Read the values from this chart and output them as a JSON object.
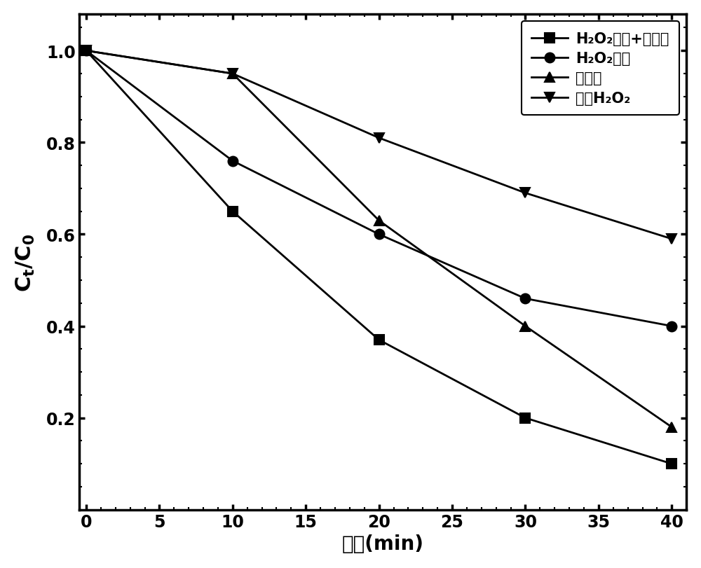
{
  "x": [
    0,
    10,
    20,
    30,
    40
  ],
  "series": [
    {
      "label": "H₂O₂活化+光偒化",
      "y": [
        1.0,
        0.65,
        0.37,
        0.2,
        0.1
      ],
      "marker": "s",
      "markersize": 10
    },
    {
      "label": "H₂O₂活化",
      "y": [
        1.0,
        0.76,
        0.6,
        0.46,
        0.4
      ],
      "marker": "o",
      "markersize": 10
    },
    {
      "label": "光偒化",
      "y": [
        1.0,
        0.95,
        0.63,
        0.4,
        0.18
      ],
      "marker": "^",
      "markersize": 10
    },
    {
      "label": "只加H₂O₂",
      "y": [
        1.0,
        0.95,
        0.81,
        0.69,
        0.59
      ],
      "marker": "v",
      "markersize": 10
    }
  ],
  "xlabel": "时间(min)",
  "ylabel_line1": "C",
  "ylabel_subscript_t": "t",
  "ylabel_slash": "/",
  "ylabel_line2": "C",
  "ylabel_subscript_0": "0",
  "xlim": [
    0,
    40
  ],
  "ylim": [
    0,
    1.08
  ],
  "xticks": [
    0,
    5,
    10,
    15,
    20,
    25,
    30,
    35,
    40
  ],
  "yticks": [
    0.2,
    0.4,
    0.6,
    0.8,
    1.0
  ],
  "line_color": "#000000",
  "line_width": 2.0,
  "marker_color": "#000000",
  "legend_fontsize": 15,
  "tick_fontsize": 17,
  "label_fontsize": 20,
  "ylabel_fontsize": 22
}
